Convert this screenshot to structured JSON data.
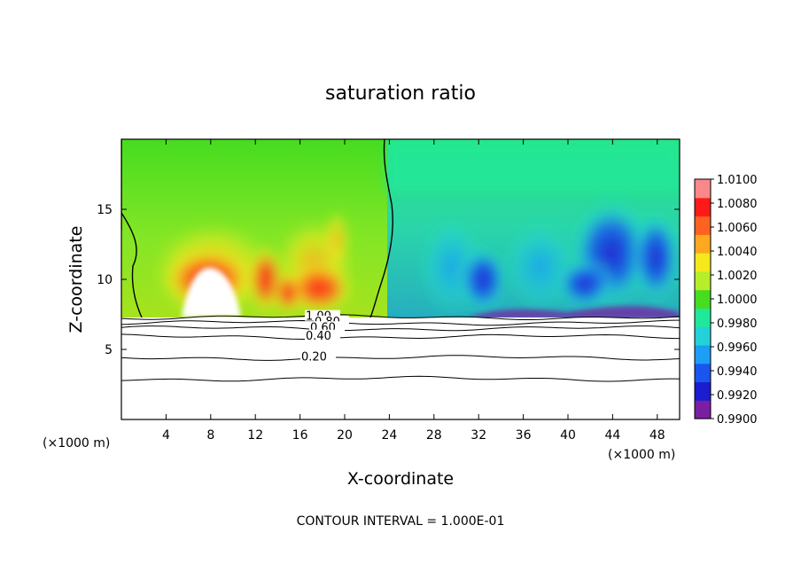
{
  "chart_data": {
    "type": "heatmap",
    "title": "saturation ratio",
    "xlabel": "X-coordinate",
    "ylabel": "Z-coordinate",
    "x_unit_left": "(×1000 m)",
    "x_unit_right": "(×1000 m)",
    "xlim": [
      0,
      50
    ],
    "ylim": [
      0,
      20
    ],
    "x_ticks": [
      4,
      8,
      12,
      16,
      20,
      24,
      28,
      32,
      36,
      40,
      44,
      48
    ],
    "x_tick_labels": [
      "4",
      "8",
      "12",
      "16",
      "20",
      "24",
      "28",
      "32",
      "36",
      "40",
      "44",
      "48"
    ],
    "y_ticks": [
      5,
      10,
      15
    ],
    "y_tick_labels": [
      "5",
      "10",
      "15"
    ],
    "colorbar": {
      "levels": [
        0.99,
        0.992,
        0.994,
        0.996,
        0.998,
        1.0,
        1.002,
        1.004,
        1.006,
        1.008,
        1.01
      ],
      "labels": [
        "0.9900",
        "0.9920",
        "0.9940",
        "0.9960",
        "0.9980",
        "1.0000",
        "1.0020",
        "1.0040",
        "1.0060",
        "1.0080",
        "1.0100"
      ],
      "colors": [
        "#7a1fa2",
        "#1c1cd0",
        "#1a55f0",
        "#1c9ef5",
        "#22d2d8",
        "#20e89a",
        "#46dc20",
        "#b6ee2a",
        "#f5e81c",
        "#fda820",
        "#fd6220",
        "#ff1a1a",
        "#f8888a"
      ]
    },
    "contour_lines": [
      {
        "label": "1.00",
        "z": 7.3
      },
      {
        "label": "0.80",
        "z": 6.9
      },
      {
        "label": "0.60",
        "z": 6.5
      },
      {
        "label": "0.40",
        "z": 5.9
      },
      {
        "label": "0.20",
        "z": 4.4
      },
      {
        "label": "",
        "z": 2.9
      }
    ],
    "contour_interval_note": "CONTOUR INTERVAL = 1.000E-01"
  }
}
